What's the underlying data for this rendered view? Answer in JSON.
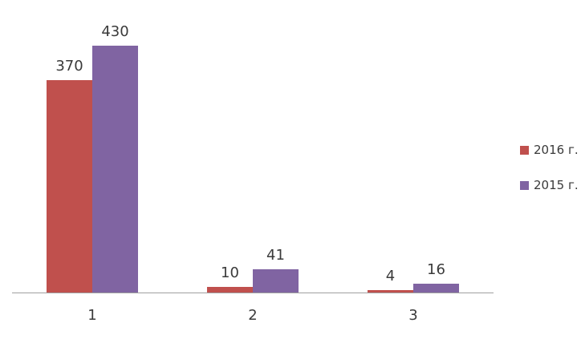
{
  "chart_data": {
    "type": "bar",
    "categories": [
      "1",
      "2",
      "3"
    ],
    "series": [
      {
        "name": "2016 г.",
        "color": "#c0504d",
        "values": [
          370,
          10,
          4
        ]
      },
      {
        "name": "2015 г.",
        "color": "#8064a2",
        "values": [
          430,
          41,
          16
        ]
      }
    ],
    "title": "",
    "xlabel": "",
    "ylabel": "",
    "ylim": [
      0,
      430
    ],
    "grid": false,
    "legend_position": "right",
    "data_labels_visible": true,
    "axis_line_color": "#a0a0a0",
    "label_text_color": "#3a3a3a",
    "background_color": "#ffffff"
  }
}
